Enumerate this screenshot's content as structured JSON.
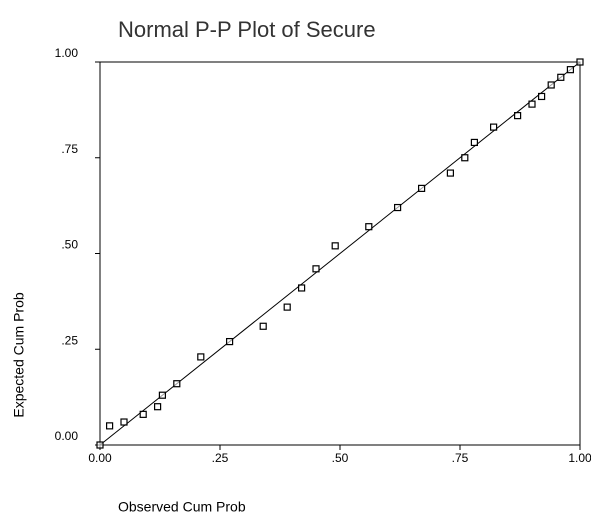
{
  "chart_data": {
    "type": "scatter",
    "title": "Normal P-P Plot of Secure",
    "xlabel": "Observed Cum Prob",
    "ylabel": "Expected Cum Prob",
    "x": [
      0.0,
      0.02,
      0.05,
      0.09,
      0.12,
      0.13,
      0.16,
      0.21,
      0.27,
      0.34,
      0.39,
      0.42,
      0.45,
      0.49,
      0.56,
      0.62,
      0.67,
      0.73,
      0.76,
      0.78,
      0.82,
      0.87,
      0.9,
      0.92,
      0.94,
      0.96,
      0.98,
      1.0
    ],
    "values": [
      0.0,
      0.05,
      0.06,
      0.08,
      0.1,
      0.13,
      0.16,
      0.23,
      0.27,
      0.31,
      0.36,
      0.41,
      0.46,
      0.52,
      0.57,
      0.62,
      0.67,
      0.71,
      0.75,
      0.79,
      0.83,
      0.86,
      0.89,
      0.91,
      0.94,
      0.96,
      0.98,
      1.0
    ],
    "color": "#000000",
    "xlim": [
      0,
      1
    ],
    "ylim": [
      0,
      1
    ],
    "xticks": [
      {
        "value": 0,
        "label": "0.00"
      },
      {
        "value": 0.25,
        "label": ".25"
      },
      {
        "value": 0.5,
        "label": ".50"
      },
      {
        "value": 0.75,
        "label": ".75"
      },
      {
        "value": 1,
        "label": "1.00"
      }
    ],
    "yticks": [
      {
        "value": 0,
        "label": "0.00"
      },
      {
        "value": 0.25,
        "label": ".25"
      },
      {
        "value": 0.5,
        "label": ".50"
      },
      {
        "value": 0.75,
        "label": ".75"
      },
      {
        "value": 1,
        "label": "1.00"
      }
    ],
    "diagonal": true,
    "grid": false
  }
}
